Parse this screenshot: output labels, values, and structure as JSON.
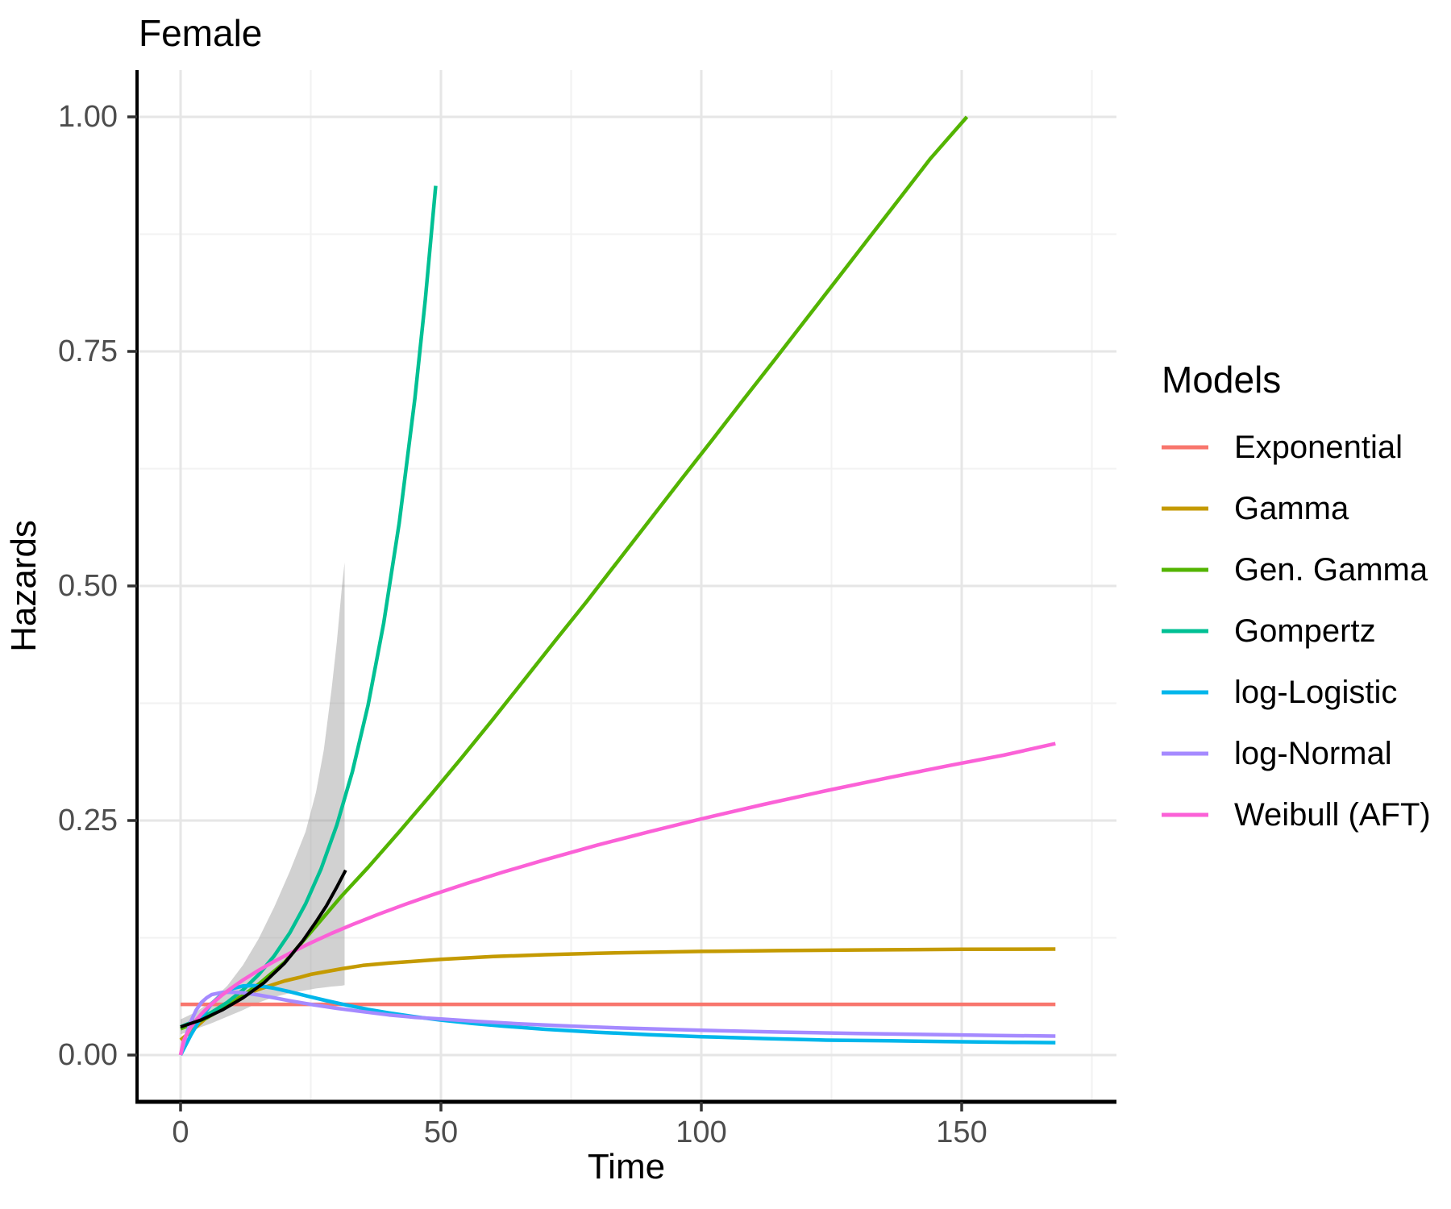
{
  "title": "Female",
  "axes": {
    "x": {
      "label": "Time"
    },
    "y": {
      "label": "Hazards"
    }
  },
  "legend": {
    "title": "Models",
    "entries": [
      {
        "label": "Exponential",
        "color": "#F8766D"
      },
      {
        "label": "Gamma",
        "color": "#C49A00"
      },
      {
        "label": "Gen. Gamma",
        "color": "#53B400"
      },
      {
        "label": "Gompertz",
        "color": "#00C094"
      },
      {
        "label": "log-Logistic",
        "color": "#00B6EB"
      },
      {
        "label": "log-Normal",
        "color": "#A58AFF"
      },
      {
        "label": "Weibull (AFT)",
        "color": "#FB61D7"
      }
    ]
  },
  "chart_data": {
    "type": "line",
    "title": "Female",
    "xlabel": "Time",
    "ylabel": "Hazards",
    "xlim": [
      -8,
      177
    ],
    "ylim": [
      -0.05,
      1.05
    ],
    "x_ticks": [
      {
        "value": 0,
        "label": "0"
      },
      {
        "value": 50,
        "label": "50"
      },
      {
        "value": 100,
        "label": "100"
      },
      {
        "value": 150,
        "label": "150"
      }
    ],
    "x_minor_ticks": [
      25,
      75,
      125,
      175
    ],
    "y_ticks": [
      {
        "value": 0.0,
        "label": "0.00"
      },
      {
        "value": 0.25,
        "label": "0.25"
      },
      {
        "value": 0.5,
        "label": "0.50"
      },
      {
        "value": 0.75,
        "label": "0.75"
      },
      {
        "value": 1.0,
        "label": "1.00"
      }
    ],
    "y_minor_ticks": [
      0.125,
      0.375,
      0.625,
      0.875
    ],
    "grid": "on",
    "legend_position": "right",
    "confidence_ribbon": {
      "name": "observed-hazard-ci",
      "fill": "#8c8c8c",
      "opacity": 0.4,
      "points": [
        {
          "t": 0,
          "lo": 0.022,
          "hi": 0.038
        },
        {
          "t": 3,
          "lo": 0.028,
          "hi": 0.046
        },
        {
          "t": 6,
          "lo": 0.034,
          "hi": 0.058
        },
        {
          "t": 9,
          "lo": 0.041,
          "hi": 0.074
        },
        {
          "t": 12,
          "lo": 0.048,
          "hi": 0.096
        },
        {
          "t": 15,
          "lo": 0.056,
          "hi": 0.124
        },
        {
          "t": 18,
          "lo": 0.062,
          "hi": 0.158
        },
        {
          "t": 21,
          "lo": 0.066,
          "hi": 0.196
        },
        {
          "t": 24,
          "lo": 0.069,
          "hi": 0.238
        },
        {
          "t": 26,
          "lo": 0.071,
          "hi": 0.28
        },
        {
          "t": 27.5,
          "lo": 0.072,
          "hi": 0.325
        },
        {
          "t": 29,
          "lo": 0.073,
          "hi": 0.39
        },
        {
          "t": 30,
          "lo": 0.0735,
          "hi": 0.44
        },
        {
          "t": 31,
          "lo": 0.074,
          "hi": 0.5
        },
        {
          "t": 31.5,
          "lo": 0.0745,
          "hi": 0.525
        }
      ]
    },
    "observed": {
      "name": "observed-hazard",
      "color": "#000000",
      "points": [
        [
          0,
          0.03
        ],
        [
          4,
          0.0375
        ],
        [
          8,
          0.048
        ],
        [
          12,
          0.061
        ],
        [
          16,
          0.077
        ],
        [
          20,
          0.098
        ],
        [
          23.5,
          0.122
        ],
        [
          26,
          0.142
        ],
        [
          28,
          0.159
        ],
        [
          30,
          0.179
        ],
        [
          31.7,
          0.197
        ]
      ]
    },
    "series": [
      {
        "name": "Exponential",
        "color": "#F8766D",
        "points": [
          [
            0,
            0.054
          ],
          [
            168,
            0.054
          ]
        ]
      },
      {
        "name": "Gamma",
        "color": "#C49A00",
        "points": [
          [
            0,
            0.016
          ],
          [
            3,
            0.03
          ],
          [
            5,
            0.04
          ],
          [
            8,
            0.051
          ],
          [
            10,
            0.058
          ],
          [
            13,
            0.066
          ],
          [
            15,
            0.07
          ],
          [
            18,
            0.0755
          ],
          [
            20,
            0.079
          ],
          [
            23,
            0.083
          ],
          [
            25,
            0.086
          ],
          [
            28,
            0.089
          ],
          [
            31,
            0.092
          ],
          [
            35,
            0.0955
          ],
          [
            40,
            0.098
          ],
          [
            45,
            0.1
          ],
          [
            50,
            0.102
          ],
          [
            55,
            0.1035
          ],
          [
            60,
            0.105
          ],
          [
            70,
            0.107
          ],
          [
            80,
            0.1085
          ],
          [
            90,
            0.1095
          ],
          [
            100,
            0.1105
          ],
          [
            115,
            0.1113
          ],
          [
            130,
            0.112
          ],
          [
            150,
            0.1127
          ],
          [
            168,
            0.113
          ]
        ]
      },
      {
        "name": "Gen. Gamma",
        "color": "#53B400",
        "points": [
          [
            0,
            0.028
          ],
          [
            5,
            0.0395
          ],
          [
            10,
            0.0555
          ],
          [
            15,
            0.0755
          ],
          [
            20,
            0.099
          ],
          [
            25,
            0.131
          ],
          [
            31,
            0.17
          ],
          [
            36,
            0.2
          ],
          [
            42,
            0.238
          ],
          [
            48,
            0.277
          ],
          [
            54,
            0.317
          ],
          [
            60,
            0.358
          ],
          [
            66,
            0.4
          ],
          [
            72,
            0.442
          ],
          [
            78,
            0.4835
          ],
          [
            84,
            0.5265
          ],
          [
            90,
            0.5695
          ],
          [
            96,
            0.6125
          ],
          [
            102,
            0.655
          ],
          [
            108,
            0.698
          ],
          [
            114,
            0.7405
          ],
          [
            120,
            0.7835
          ],
          [
            126,
            0.8265
          ],
          [
            132,
            0.8695
          ],
          [
            138,
            0.9125
          ],
          [
            144,
            0.9555
          ],
          [
            151,
            1.0
          ]
        ]
      },
      {
        "name": "Gompertz",
        "color": "#00C094",
        "points": [
          [
            0,
            0.03
          ],
          [
            3,
            0.037
          ],
          [
            6,
            0.0457
          ],
          [
            9,
            0.0563
          ],
          [
            12,
            0.0695
          ],
          [
            15,
            0.0857
          ],
          [
            18,
            0.1058
          ],
          [
            21,
            0.1305
          ],
          [
            24,
            0.161
          ],
          [
            27,
            0.1986
          ],
          [
            30,
            0.245
          ],
          [
            33,
            0.3022
          ],
          [
            36,
            0.3729
          ],
          [
            39,
            0.46
          ],
          [
            42,
            0.5675
          ],
          [
            45,
            0.7
          ],
          [
            47,
            0.8052
          ],
          [
            49,
            0.9265
          ]
        ]
      },
      {
        "name": "log-Logistic",
        "color": "#00B6EB",
        "points": [
          [
            0,
            0.0
          ],
          [
            2,
            0.0215
          ],
          [
            4,
            0.0404
          ],
          [
            6,
            0.055
          ],
          [
            8,
            0.065
          ],
          [
            10,
            0.0709
          ],
          [
            12,
            0.0736
          ],
          [
            14,
            0.074
          ],
          [
            16,
            0.073
          ],
          [
            18,
            0.0711
          ],
          [
            21,
            0.0674
          ],
          [
            24,
            0.0633
          ],
          [
            28,
            0.058
          ],
          [
            32,
            0.0531
          ],
          [
            36,
            0.0487
          ],
          [
            40,
            0.0449
          ],
          [
            45,
            0.0408
          ],
          [
            50,
            0.0373
          ],
          [
            56,
            0.0338
          ],
          [
            62,
            0.0308
          ],
          [
            70,
            0.0275
          ],
          [
            80,
            0.0243
          ],
          [
            90,
            0.0217
          ],
          [
            100,
            0.0196
          ],
          [
            112,
            0.0176
          ],
          [
            124,
            0.0159
          ],
          [
            136,
            0.0152
          ],
          [
            150,
            0.0142
          ],
          [
            160,
            0.0136
          ],
          [
            168,
            0.0132
          ]
        ]
      },
      {
        "name": "log-Normal",
        "color": "#A58AFF",
        "points": [
          [
            0,
            0.0
          ],
          [
            1,
            0.02
          ],
          [
            2,
            0.036
          ],
          [
            3,
            0.048
          ],
          [
            4,
            0.056
          ],
          [
            5,
            0.061
          ],
          [
            6,
            0.0645
          ],
          [
            8,
            0.0668
          ],
          [
            10,
            0.067
          ],
          [
            12,
            0.0663
          ],
          [
            15,
            0.064
          ],
          [
            18,
            0.061
          ],
          [
            21,
            0.0578
          ],
          [
            25,
            0.054
          ],
          [
            30,
            0.0498
          ],
          [
            35,
            0.0462
          ],
          [
            40,
            0.0428
          ],
          [
            45,
            0.0402
          ],
          [
            50,
            0.0384
          ],
          [
            57,
            0.0358
          ],
          [
            65,
            0.0333
          ],
          [
            75,
            0.0308
          ],
          [
            85,
            0.0288
          ],
          [
            100,
            0.0264
          ],
          [
            115,
            0.0245
          ],
          [
            130,
            0.023
          ],
          [
            145,
            0.0218
          ],
          [
            157,
            0.0209
          ],
          [
            168,
            0.0202
          ]
        ]
      },
      {
        "name": "Weibull (AFT)",
        "color": "#FB61D7",
        "points": [
          [
            0,
            0.0
          ],
          [
            0.5,
            0.0139
          ],
          [
            1,
            0.0204
          ],
          [
            2,
            0.0299
          ],
          [
            3,
            0.0374
          ],
          [
            4,
            0.0437
          ],
          [
            5,
            0.0494
          ],
          [
            6,
            0.0547
          ],
          [
            8,
            0.0641
          ],
          [
            10,
            0.0723
          ],
          [
            12,
            0.08
          ],
          [
            15,
            0.0904
          ],
          [
            18,
            0.0999
          ],
          [
            21,
            0.1086
          ],
          [
            25,
            0.1196
          ],
          [
            29,
            0.1297
          ],
          [
            33,
            0.1391
          ],
          [
            38,
            0.1501
          ],
          [
            43,
            0.1604
          ],
          [
            48,
            0.1701
          ],
          [
            55,
            0.183
          ],
          [
            62,
            0.1951
          ],
          [
            70,
            0.2082
          ],
          [
            80,
            0.2237
          ],
          [
            90,
            0.2381
          ],
          [
            100,
            0.2517
          ],
          [
            112,
            0.2672
          ],
          [
            124,
            0.2818
          ],
          [
            136,
            0.2957
          ],
          [
            148,
            0.309
          ],
          [
            158,
            0.3196
          ],
          [
            168,
            0.332
          ]
        ]
      }
    ]
  }
}
